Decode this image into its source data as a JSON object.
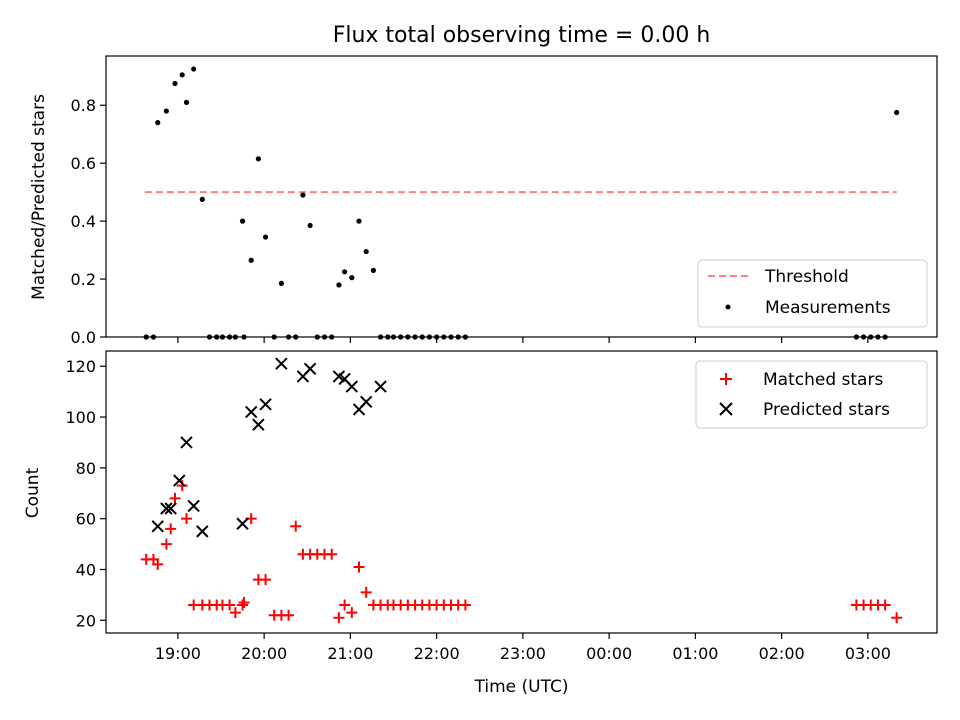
{
  "chart_data": [
    {
      "type": "scatter",
      "title": "Flux total observing time = 0.00 h",
      "ylabel": "Matched/Predicted stars",
      "ylim": [
        0,
        0.97
      ],
      "yticks": [
        "0.0",
        "0.2",
        "0.4",
        "0.6",
        "0.8"
      ],
      "threshold": {
        "name": "Threshold",
        "value": 0.5,
        "x_start": "18:37",
        "x_end": "03:20",
        "color": "#ff7f7f"
      },
      "series": [
        {
          "name": "Measurements",
          "color": "#000000",
          "x": [
            "18:38",
            "18:43",
            "18:46",
            "18:52",
            "18:58",
            "19:03",
            "19:06",
            "19:11",
            "19:17",
            "19:22",
            "19:27",
            "19:31",
            "19:36",
            "19:40",
            "19:45",
            "19:46",
            "19:51",
            "19:56",
            "20:01",
            "20:07",
            "20:12",
            "20:17",
            "20:22",
            "20:27",
            "20:32",
            "20:37",
            "20:42",
            "20:47",
            "20:52",
            "20:56",
            "21:01",
            "21:06",
            "21:11",
            "21:16",
            "21:21",
            "21:26",
            "21:30",
            "21:35",
            "21:40",
            "21:45",
            "21:50",
            "21:55",
            "22:00",
            "22:05",
            "22:10",
            "22:15",
            "22:20",
            "02:52",
            "02:57",
            "03:02",
            "03:07",
            "03:12",
            "03:20"
          ],
          "y": [
            0,
            0,
            0.74,
            0.78,
            0.875,
            0.905,
            0.81,
            0.925,
            0.475,
            0,
            0,
            0,
            0,
            0,
            0.4,
            0,
            0.265,
            0.615,
            0.345,
            0,
            0.185,
            0,
            0,
            0.49,
            0.385,
            0,
            0,
            0,
            0.18,
            0.225,
            0.205,
            0.4,
            0.295,
            0.23,
            0,
            0,
            0,
            0,
            0,
            0,
            0,
            0,
            0,
            0,
            0,
            0,
            0,
            0,
            0,
            0,
            0,
            0,
            0.775
          ]
        }
      ]
    },
    {
      "type": "scatter",
      "xlabel": "Time (UTC)",
      "ylabel": "Count",
      "ylim": [
        15,
        126
      ],
      "yticks": [
        "20",
        "40",
        "60",
        "80",
        "100",
        "120"
      ],
      "xticks": [
        "19:00",
        "20:00",
        "21:00",
        "22:00",
        "23:00",
        "00:00",
        "01:00",
        "02:00",
        "03:00"
      ],
      "series": [
        {
          "name": "Matched stars",
          "marker": "plus",
          "color": "#ff0000",
          "x": [
            "18:38",
            "18:43",
            "18:46",
            "18:52",
            "18:55",
            "18:58",
            "19:03",
            "19:06",
            "19:11",
            "19:17",
            "19:22",
            "19:27",
            "19:31",
            "19:36",
            "19:40",
            "19:45",
            "19:46",
            "19:51",
            "19:56",
            "20:01",
            "20:07",
            "20:12",
            "20:17",
            "20:22",
            "20:27",
            "20:32",
            "20:37",
            "20:42",
            "20:47",
            "20:52",
            "20:56",
            "21:01",
            "21:06",
            "21:11",
            "21:16",
            "21:21",
            "21:26",
            "21:30",
            "21:35",
            "21:40",
            "21:45",
            "21:50",
            "21:55",
            "22:00",
            "22:05",
            "22:10",
            "22:15",
            "22:20",
            "02:52",
            "02:57",
            "03:02",
            "03:07",
            "03:12",
            "03:20"
          ],
          "y": [
            44,
            44,
            42,
            50,
            56,
            68,
            73,
            60,
            26,
            26,
            26,
            26,
            26,
            26,
            23,
            26,
            27,
            60,
            36,
            36,
            22,
            22,
            22,
            57,
            46,
            46,
            46,
            46,
            46,
            21,
            26,
            23,
            41,
            31,
            26,
            26,
            26,
            26,
            26,
            26,
            26,
            26,
            26,
            26,
            26,
            26,
            26,
            26,
            26,
            26,
            26,
            26,
            26,
            21
          ]
        },
        {
          "name": "Predicted stars",
          "marker": "x",
          "color": "#000000",
          "x": [
            "18:46",
            "18:52",
            "18:55",
            "19:01",
            "19:06",
            "19:11",
            "19:17",
            "19:45",
            "19:51",
            "19:56",
            "20:01",
            "20:12",
            "20:27",
            "20:32",
            "20:52",
            "20:56",
            "21:01",
            "21:06",
            "21:11",
            "21:21"
          ],
          "y": [
            57,
            64,
            64,
            75,
            90,
            65,
            55,
            58,
            102,
            97,
            105,
            121,
            116,
            119,
            116,
            115,
            112,
            103,
            106,
            112
          ]
        }
      ]
    }
  ]
}
